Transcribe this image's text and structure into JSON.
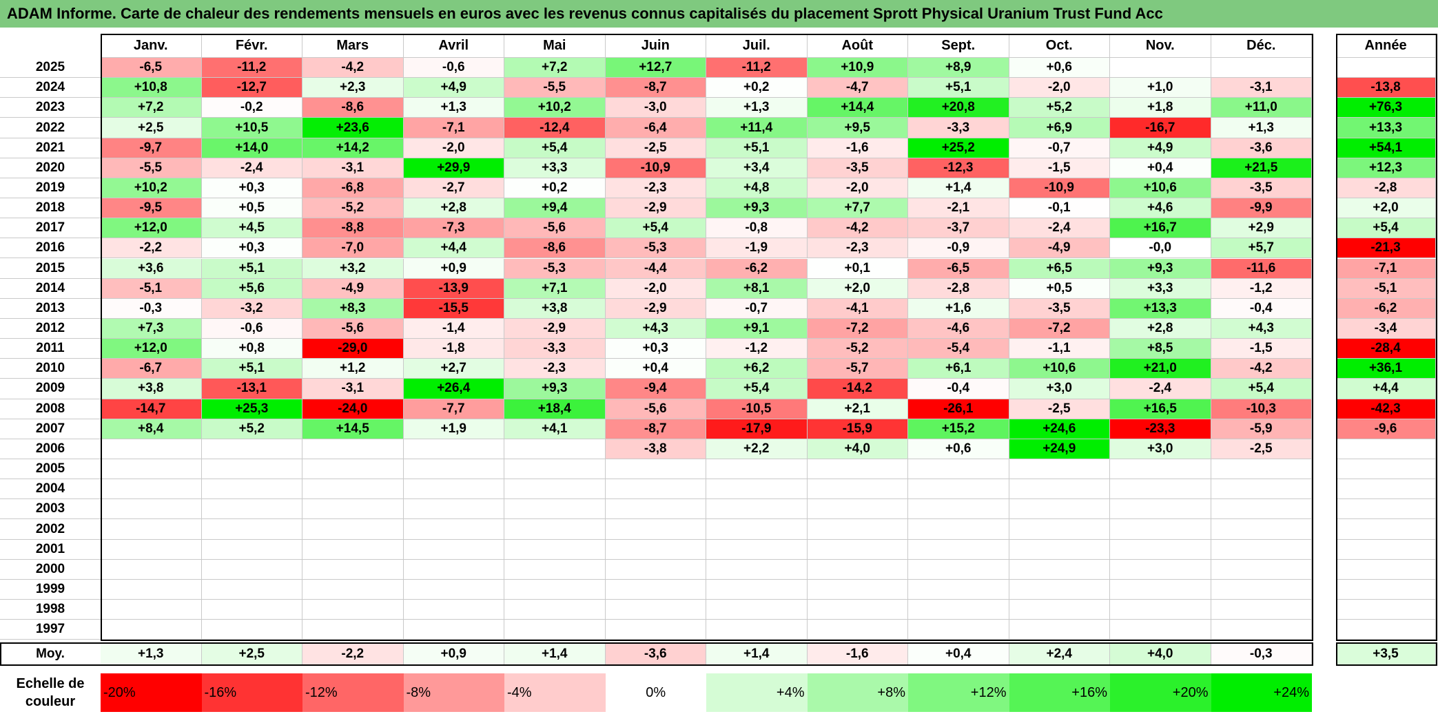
{
  "title": "ADAM Informe. Carte de chaleur des rendements mensuels en euros avec les revenus connus capitalisés du placement Sprott Physical Uranium Trust Fund Acc",
  "chart_data": {
    "type": "heatmap",
    "columns": [
      "Janv.",
      "Févr.",
      "Mars",
      "Avril",
      "Mai",
      "Juin",
      "Juil.",
      "Août",
      "Sept.",
      "Oct.",
      "Nov.",
      "Déc."
    ],
    "year_column_label": "Année",
    "rows": [
      {
        "year": "2025",
        "values": [
          "-6,5",
          "-11,2",
          "-4,2",
          "-0,6",
          "+7,2",
          "+12,7",
          "-11,2",
          "+10,9",
          "+8,9",
          "+0,6",
          "",
          ""
        ],
        "annual": ""
      },
      {
        "year": "2024",
        "values": [
          "+10,8",
          "-12,7",
          "+2,3",
          "+4,9",
          "-5,5",
          "-8,7",
          "+0,2",
          "-4,7",
          "+5,1",
          "-2,0",
          "+1,0",
          "-3,1"
        ],
        "annual": "-13,8"
      },
      {
        "year": "2023",
        "values": [
          "+7,2",
          "-0,2",
          "-8,6",
          "+1,3",
          "+10,2",
          "-3,0",
          "+1,3",
          "+14,4",
          "+20,8",
          "+5,2",
          "+1,8",
          "+11,0"
        ],
        "annual": "+76,3"
      },
      {
        "year": "2022",
        "values": [
          "+2,5",
          "+10,5",
          "+23,6",
          "-7,1",
          "-12,4",
          "-6,4",
          "+11,4",
          "+9,5",
          "-3,3",
          "+6,9",
          "-16,7",
          "+1,3"
        ],
        "annual": "+13,3"
      },
      {
        "year": "2021",
        "values": [
          "-9,7",
          "+14,0",
          "+14,2",
          "-2,0",
          "+5,4",
          "-2,5",
          "+5,1",
          "-1,6",
          "+25,2",
          "-0,7",
          "+4,9",
          "-3,6"
        ],
        "annual": "+54,1"
      },
      {
        "year": "2020",
        "values": [
          "-5,5",
          "-2,4",
          "-3,1",
          "+29,9",
          "+3,3",
          "-10,9",
          "+3,4",
          "-3,5",
          "-12,3",
          "-1,5",
          "+0,4",
          "+21,5"
        ],
        "annual": "+12,3"
      },
      {
        "year": "2019",
        "values": [
          "+10,2",
          "+0,3",
          "-6,8",
          "-2,7",
          "+0,2",
          "-2,3",
          "+4,8",
          "-2,0",
          "+1,4",
          "-10,9",
          "+10,6",
          "-3,5"
        ],
        "annual": "-2,8"
      },
      {
        "year": "2018",
        "values": [
          "-9,5",
          "+0,5",
          "-5,2",
          "+2,8",
          "+9,4",
          "-2,9",
          "+9,3",
          "+7,7",
          "-2,1",
          "-0,1",
          "+4,6",
          "-9,9"
        ],
        "annual": "+2,0"
      },
      {
        "year": "2017",
        "values": [
          "+12,0",
          "+4,5",
          "-8,8",
          "-7,3",
          "-5,6",
          "+5,4",
          "-0,8",
          "-4,2",
          "-3,7",
          "-2,4",
          "+16,7",
          "+2,9"
        ],
        "annual": "+5,4"
      },
      {
        "year": "2016",
        "values": [
          "-2,2",
          "+0,3",
          "-7,0",
          "+4,4",
          "-8,6",
          "-5,3",
          "-1,9",
          "-2,3",
          "-0,9",
          "-4,9",
          "-0,0",
          "+5,7"
        ],
        "annual": "-21,3"
      },
      {
        "year": "2015",
        "values": [
          "+3,6",
          "+5,1",
          "+3,2",
          "+0,9",
          "-5,3",
          "-4,4",
          "-6,2",
          "+0,1",
          "-6,5",
          "+6,5",
          "+9,3",
          "-11,6"
        ],
        "annual": "-7,1"
      },
      {
        "year": "2014",
        "values": [
          "-5,1",
          "+5,6",
          "-4,9",
          "-13,9",
          "+7,1",
          "-2,0",
          "+8,1",
          "+2,0",
          "-2,8",
          "+0,5",
          "+3,3",
          "-1,2"
        ],
        "annual": "-5,1"
      },
      {
        "year": "2013",
        "values": [
          "-0,3",
          "-3,2",
          "+8,3",
          "-15,5",
          "+3,8",
          "-2,9",
          "-0,7",
          "-4,1",
          "+1,6",
          "-3,5",
          "+13,3",
          "-0,4"
        ],
        "annual": "-6,2"
      },
      {
        "year": "2012",
        "values": [
          "+7,3",
          "-0,6",
          "-5,6",
          "-1,4",
          "-2,9",
          "+4,3",
          "+9,1",
          "-7,2",
          "-4,6",
          "-7,2",
          "+2,8",
          "+4,3"
        ],
        "annual": "-3,4"
      },
      {
        "year": "2011",
        "values": [
          "+12,0",
          "+0,8",
          "-29,0",
          "-1,8",
          "-3,3",
          "+0,3",
          "-1,2",
          "-5,2",
          "-5,4",
          "-1,1",
          "+8,5",
          "-1,5"
        ],
        "annual": "-28,4"
      },
      {
        "year": "2010",
        "values": [
          "-6,7",
          "+5,1",
          "+1,2",
          "+2,7",
          "-2,3",
          "+0,4",
          "+6,2",
          "-5,7",
          "+6,1",
          "+10,6",
          "+21,0",
          "-4,2"
        ],
        "annual": "+36,1"
      },
      {
        "year": "2009",
        "values": [
          "+3,8",
          "-13,1",
          "-3,1",
          "+26,4",
          "+9,3",
          "-9,4",
          "+5,4",
          "-14,2",
          "-0,4",
          "+3,0",
          "-2,4",
          "+5,4"
        ],
        "annual": "+4,4"
      },
      {
        "year": "2008",
        "values": [
          "-14,7",
          "+25,3",
          "-24,0",
          "-7,7",
          "+18,4",
          "-5,6",
          "-10,5",
          "+2,1",
          "-26,1",
          "-2,5",
          "+16,5",
          "-10,3"
        ],
        "annual": "-42,3"
      },
      {
        "year": "2007",
        "values": [
          "+8,4",
          "+5,2",
          "+14,5",
          "+1,9",
          "+4,1",
          "-8,7",
          "-17,9",
          "-15,9",
          "+15,2",
          "+24,6",
          "-23,3",
          "-5,9"
        ],
        "annual": "-9,6"
      },
      {
        "year": "2006",
        "values": [
          "",
          "",
          "",
          "",
          "",
          "-3,8",
          "+2,2",
          "+4,0",
          "+0,6",
          "+24,9",
          "+3,0",
          "-2,5"
        ],
        "annual": ""
      },
      {
        "year": "2005",
        "values": [
          "",
          "",
          "",
          "",
          "",
          "",
          "",
          "",
          "",
          "",
          "",
          ""
        ],
        "annual": ""
      },
      {
        "year": "2004",
        "values": [
          "",
          "",
          "",
          "",
          "",
          "",
          "",
          "",
          "",
          "",
          "",
          ""
        ],
        "annual": ""
      },
      {
        "year": "2003",
        "values": [
          "",
          "",
          "",
          "",
          "",
          "",
          "",
          "",
          "",
          "",
          "",
          ""
        ],
        "annual": ""
      },
      {
        "year": "2002",
        "values": [
          "",
          "",
          "",
          "",
          "",
          "",
          "",
          "",
          "",
          "",
          "",
          ""
        ],
        "annual": ""
      },
      {
        "year": "2001",
        "values": [
          "",
          "",
          "",
          "",
          "",
          "",
          "",
          "",
          "",
          "",
          "",
          ""
        ],
        "annual": ""
      },
      {
        "year": "2000",
        "values": [
          "",
          "",
          "",
          "",
          "",
          "",
          "",
          "",
          "",
          "",
          "",
          ""
        ],
        "annual": ""
      },
      {
        "year": "1999",
        "values": [
          "",
          "",
          "",
          "",
          "",
          "",
          "",
          "",
          "",
          "",
          "",
          ""
        ],
        "annual": ""
      },
      {
        "year": "1998",
        "values": [
          "",
          "",
          "",
          "",
          "",
          "",
          "",
          "",
          "",
          "",
          "",
          ""
        ],
        "annual": ""
      },
      {
        "year": "1997",
        "values": [
          "",
          "",
          "",
          "",
          "",
          "",
          "",
          "",
          "",
          "",
          "",
          ""
        ],
        "annual": ""
      }
    ],
    "average": {
      "label": "Moy.",
      "values": [
        "+1,3",
        "+2,5",
        "-2,2",
        "+0,9",
        "+1,4",
        "-3,6",
        "+1,4",
        "-1,6",
        "+0,4",
        "+2,4",
        "+4,0",
        "-0,3"
      ],
      "annual": "+3,5"
    },
    "color_scale": {
      "label_line1": "Echelle de",
      "label_line2": "couleur",
      "stops": [
        "-20%",
        "-16%",
        "-12%",
        "-8%",
        "-4%",
        "0%",
        "+4%",
        "+8%",
        "+12%",
        "+16%",
        "+20%",
        "+24%"
      ]
    }
  },
  "colors": {
    "title_bar": "#7fc97f",
    "neg_max": "#ff0000",
    "pos_max": "#00ee00",
    "zero": "#ffffff"
  }
}
